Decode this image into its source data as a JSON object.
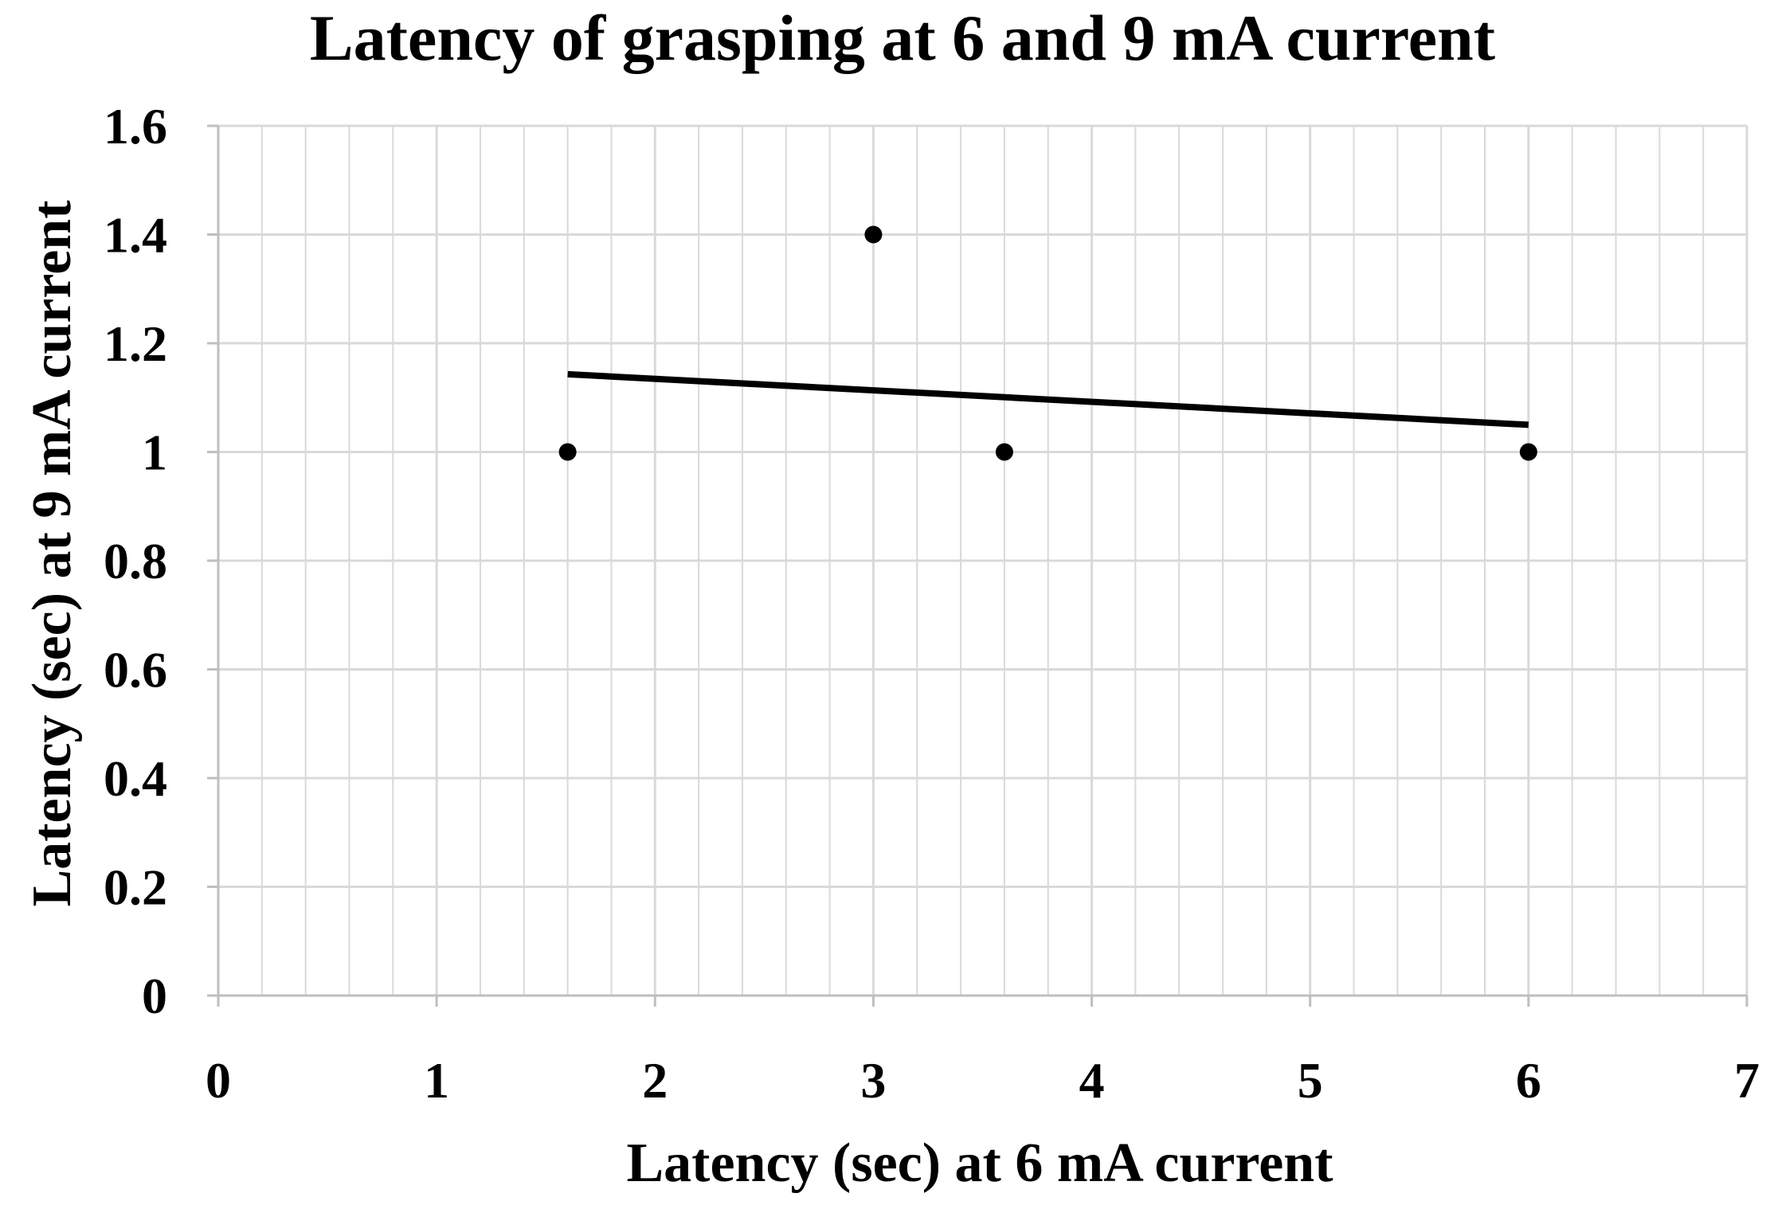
{
  "chart_data": {
    "type": "scatter",
    "title": "Latency of grasping at 6 and 9 mA current",
    "xlabel": "Latency (sec) at 6 mA current",
    "ylabel": "Latency (sec) at 9 mA current",
    "xlim": [
      0,
      7
    ],
    "ylim": [
      0,
      1.6
    ],
    "x_ticks": [
      0,
      1,
      2,
      3,
      4,
      5,
      6,
      7
    ],
    "y_ticks": [
      0,
      0.2,
      0.4,
      0.6,
      0.8,
      1,
      1.2,
      1.4,
      1.6
    ],
    "x_tick_labels": [
      "0",
      "1",
      "2",
      "3",
      "4",
      "5",
      "6",
      "7"
    ],
    "y_tick_labels": [
      "0",
      "0.2",
      "0.4",
      "0.6",
      "0.8",
      "1",
      "1.2",
      "1.4",
      "1.6"
    ],
    "minor_x_step": 0.2,
    "grid": true,
    "legend": "none",
    "series": [
      {
        "points": [
          {
            "x": 1.6,
            "y": 1.0
          },
          {
            "x": 3.0,
            "y": 1.4
          },
          {
            "x": 3.6,
            "y": 1.0
          },
          {
            "x": 6.0,
            "y": 1.0
          }
        ]
      }
    ],
    "trendline": {
      "type": "linear",
      "points": [
        {
          "x": 1.6,
          "y": 1.143
        },
        {
          "x": 6.0,
          "y": 1.05
        }
      ]
    },
    "colors": {
      "marker": "#000000",
      "trendline": "#000000",
      "grid": "#d9d9d9",
      "axis": "#bfbfbf",
      "text": "#000000"
    }
  }
}
